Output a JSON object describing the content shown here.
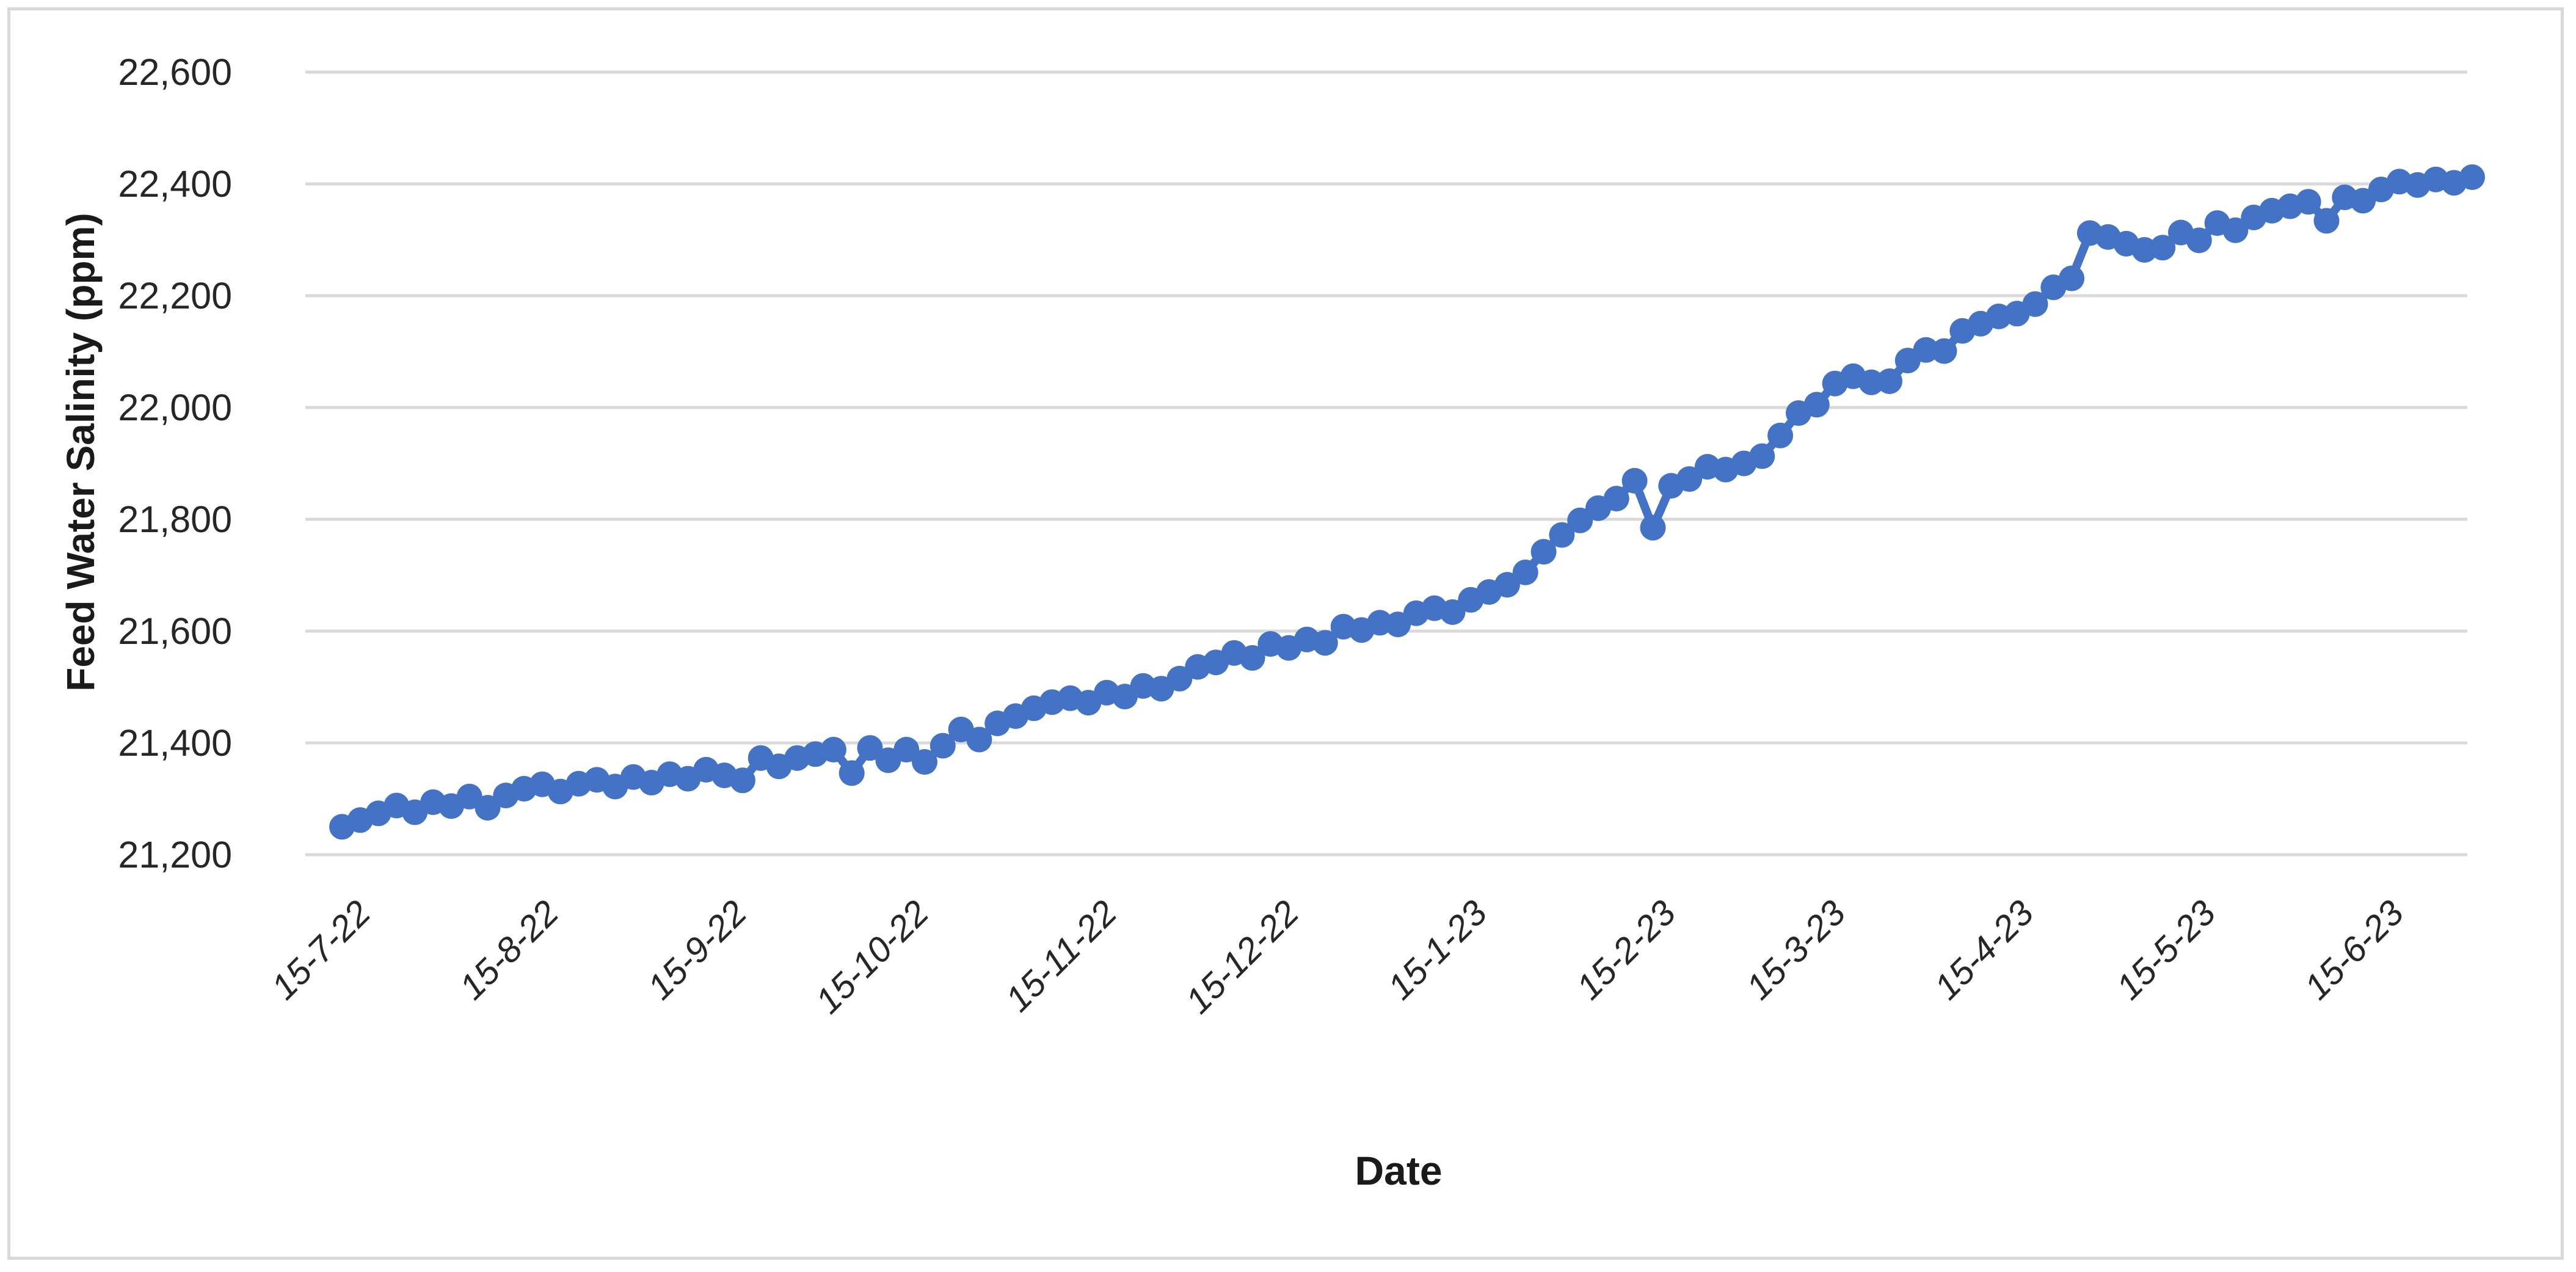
{
  "chart": {
    "y_axis_title": "Feed Water Salinity (ppm)",
    "x_axis_title": "Date"
  },
  "chart_data": {
    "type": "line",
    "title": "",
    "xlabel": "Date",
    "ylabel": "Feed Water Salinity (ppm)",
    "legend": "none",
    "grid": true,
    "ylim": [
      21200,
      22600
    ],
    "y_ticks": [
      21200,
      21400,
      21600,
      21800,
      22000,
      22200,
      22400,
      22600
    ],
    "y_tick_labels": [
      "21,200",
      "21,400",
      "21,600",
      "21,800",
      "22,000",
      "22,200",
      "22,400",
      "22,600"
    ],
    "x_tick_labels": [
      "15-7-22",
      "15-8-22",
      "15-9-22",
      "15-10-22",
      "15-11-22",
      "15-12-22",
      "15-1-23",
      "15-2-23",
      "15-3-23",
      "15-4-23",
      "15-5-23",
      "15-6-23"
    ],
    "point_interval_days": 3,
    "line_color": "#4472C4",
    "gridline_color": "#d9d9d9",
    "series": [
      {
        "marker": "circle",
        "values": [
          21250,
          21262,
          21274,
          21288,
          21276,
          21294,
          21287,
          21304,
          21284,
          21306,
          21318,
          21326,
          21313,
          21327,
          21334,
          21322,
          21339,
          21329,
          21344,
          21336,
          21352,
          21342,
          21333,
          21373,
          21358,
          21373,
          21380,
          21388,
          21346,
          21391,
          21369,
          21388,
          21366,
          21395,
          21424,
          21406,
          21435,
          21448,
          21462,
          21473,
          21480,
          21472,
          21490,
          21483,
          21502,
          21497,
          21515,
          21536,
          21544,
          21561,
          21552,
          21577,
          21570,
          21585,
          21579,
          21608,
          21602,
          21615,
          21612,
          21632,
          21641,
          21634,
          21656,
          21670,
          21683,
          21705,
          21742,
          21772,
          21798,
          21820,
          21837,
          21869,
          21785,
          21860,
          21872,
          21894,
          21889,
          21900,
          21913,
          21950,
          21990,
          22005,
          22043,
          22056,
          22045,
          22047,
          22084,
          22103,
          22101,
          22137,
          22150,
          22163,
          22168,
          22185,
          22215,
          22231,
          22312,
          22305,
          22293,
          22282,
          22286,
          22313,
          22299,
          22330,
          22317,
          22340,
          22352,
          22360,
          22368,
          22334,
          22376,
          22370,
          22390,
          22404,
          22398,
          22408,
          22402,
          22412
        ]
      }
    ]
  }
}
